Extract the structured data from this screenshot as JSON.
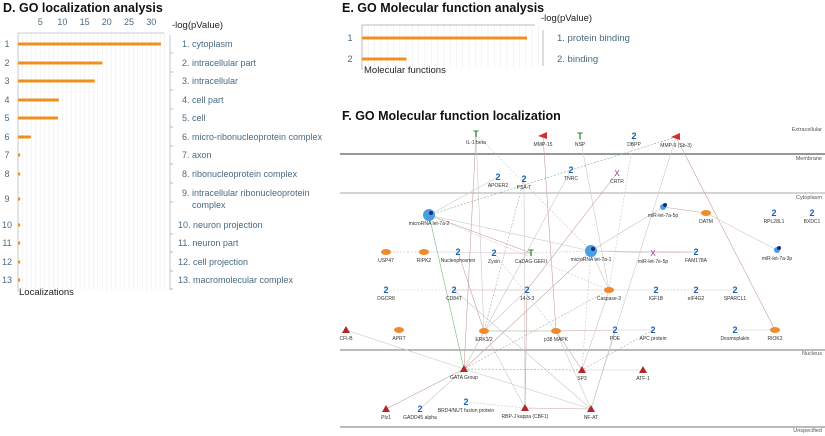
{
  "panel_d": {
    "title": "D. GO localization analysis",
    "x_axis_label": "-log(pValue)",
    "y_axis_label": "Localizations",
    "chart_data": {
      "type": "bar",
      "orientation": "horizontal",
      "xlabel": "-log(pValue)",
      "ylabel": "Localizations",
      "xticks": [
        5,
        10,
        15,
        20,
        25,
        30
      ],
      "xlim": [
        0,
        33
      ],
      "grid": true,
      "bar_color": "#f0901e",
      "categories": [
        "1",
        "2",
        "3",
        "4",
        "5",
        "6",
        "7",
        "8",
        "9",
        "10",
        "11",
        "12",
        "13"
      ],
      "values": [
        32.2,
        19.0,
        17.3,
        9.2,
        9.0,
        2.9,
        0.5,
        0.5,
        0.5,
        0.5,
        0.5,
        0.5,
        0.5
      ],
      "legend": [
        "1. cytoplasm",
        "2. intracellular part",
        "3. intracellular",
        "4. cell part",
        "5. cell",
        "6. micro-ribonucleoprotein complex",
        "7. axon",
        "8. ribonucleoprotein complex",
        "9. intracellular ribonucleoprotein complex",
        "10. neuron projection",
        "11. neuron part",
        "12. cell projection",
        "13. macromolecular complex"
      ]
    }
  },
  "panel_e": {
    "title": "E. GO Molecular function analysis",
    "x_axis_label": "-log(pValue)",
    "y_axis_label": "Molecular functions",
    "chart_data": {
      "type": "bar",
      "orientation": "horizontal",
      "xlabel": "-log(pValue)",
      "ylabel": "Molecular functions",
      "grid": true,
      "bar_color": "#f0901e",
      "categories": [
        "1",
        "2"
      ],
      "relative_values": [
        1.0,
        0.27
      ],
      "legend": [
        "1. protein binding",
        "2. binding"
      ]
    }
  },
  "panel_f": {
    "title": "F. GO Molecular function localization",
    "lanes": [
      "Extracellular",
      "Membrane",
      "Cytoplasm",
      "Nucleus",
      "Unspecified"
    ],
    "colors": {
      "transcription_factor": "#b0282a",
      "kinase": "#f08a2a",
      "generic": "#1a5fb4",
      "ligand": "#2a8a3a",
      "microrna": "#4a9de0",
      "receptor": "#d03030",
      "edge_red": "#c9a0a0",
      "edge_gray": "#c8c8c8",
      "edge_green": "#7ab87a"
    },
    "nodes": [
      {
        "id": "IL-1 beta",
        "type": "ligand"
      },
      {
        "id": "MMP-15",
        "type": "receptor"
      },
      {
        "id": "NSP",
        "type": "ligand"
      },
      {
        "id": "DBPP",
        "type": "generic"
      },
      {
        "id": "MMP-9 (Sb-3)",
        "type": "receptor"
      },
      {
        "id": "APOER2",
        "type": "generic"
      },
      {
        "id": "PSA-T",
        "type": "generic"
      },
      {
        "id": "TNRC",
        "type": "generic"
      },
      {
        "id": "CRTR",
        "type": "other"
      },
      {
        "id": "microRNA let-7a-2",
        "type": "microrna"
      },
      {
        "id": "miR-let-7a-5p",
        "type": "microrna"
      },
      {
        "id": "DATM",
        "type": "kinase"
      },
      {
        "id": "RPL28L1",
        "type": "generic"
      },
      {
        "id": "BXDC1",
        "type": "generic"
      },
      {
        "id": "USP47",
        "type": "kinase"
      },
      {
        "id": "RIPK2",
        "type": "kinase"
      },
      {
        "id": "Nucleophosmin",
        "type": "generic"
      },
      {
        "id": "Zyxin",
        "type": "generic"
      },
      {
        "id": "CaDAG-GEFII",
        "type": "ligand"
      },
      {
        "id": "microRNA let-7a-1",
        "type": "microrna"
      },
      {
        "id": "miR-let-7e-5p",
        "type": "other"
      },
      {
        "id": "FAM178A",
        "type": "generic"
      },
      {
        "id": "miR-let-7a-3p",
        "type": "microrna"
      },
      {
        "id": "DGCR8",
        "type": "generic"
      },
      {
        "id": "CD84T",
        "type": "generic"
      },
      {
        "id": "14-3-3",
        "type": "generic"
      },
      {
        "id": "Caspase-3",
        "type": "kinase"
      },
      {
        "id": "IGF1B",
        "type": "generic"
      },
      {
        "id": "eIF4G2",
        "type": "generic"
      },
      {
        "id": "SPARCL1",
        "type": "generic"
      },
      {
        "id": "CFI-B",
        "type": "transcription_factor"
      },
      {
        "id": "APRT",
        "type": "kinase"
      },
      {
        "id": "ERK1/2",
        "type": "kinase"
      },
      {
        "id": "p38 MAPK",
        "type": "kinase"
      },
      {
        "id": "PDE",
        "type": "generic"
      },
      {
        "id": "APC protein",
        "type": "generic"
      },
      {
        "id": "Desmoplakin",
        "type": "generic"
      },
      {
        "id": "RIOK2",
        "type": "kinase"
      },
      {
        "id": "GATA Group",
        "type": "transcription_factor"
      },
      {
        "id": "SP3",
        "type": "transcription_factor"
      },
      {
        "id": "ATF-1",
        "type": "transcription_factor"
      },
      {
        "id": "Plz1",
        "type": "transcription_factor"
      },
      {
        "id": "GADD45 alpha",
        "type": "generic"
      },
      {
        "id": "BRD4/NUT fusion protein",
        "type": "generic"
      },
      {
        "id": "RBP-J kappa (CBF1)",
        "type": "transcription_factor"
      },
      {
        "id": "NF-AT",
        "type": "transcription_factor"
      }
    ],
    "edges": [
      [
        "IL-1 beta",
        "GATA Group"
      ],
      [
        "IL-1 beta",
        "microRNA let-7a-1"
      ],
      [
        "IL-1 beta",
        "ERK1/2"
      ],
      [
        "MMP-15",
        "p38 MAPK"
      ],
      [
        "NSP",
        "Caspase-3"
      ],
      [
        "MMP-9 (Sb-3)",
        "microRNA let-7a-2"
      ],
      [
        "MMP-9 (Sb-3)",
        "RIOK2"
      ],
      [
        "MMP-9 (Sb-3)",
        "NF-AT"
      ],
      [
        "APOER2",
        "microRNA let-7a-2"
      ],
      [
        "PSA-T",
        "ERK1/2"
      ],
      [
        "PSA-T",
        "RBP-J kappa (CBF1)"
      ],
      [
        "TNRC",
        "GATA Group"
      ],
      [
        "CRTR",
        "14-3-3"
      ],
      [
        "DBPP",
        "Caspase-3"
      ],
      [
        "microRNA let-7a-2",
        "microRNA let-7a-1"
      ],
      [
        "microRNA let-7a-2",
        "CaDAG-GEFII"
      ],
      [
        "microRNA let-7a-2",
        "GATA Group"
      ],
      [
        "microRNA let-7a-2",
        "Caspase-3"
      ],
      [
        "miR-let-7a-5p",
        "DATM"
      ],
      [
        "miR-let-7a-5p",
        "microRNA let-7a-1"
      ],
      [
        "DATM",
        "miR-let-7a-3p"
      ],
      [
        "USP47",
        "RIPK2"
      ],
      [
        "RIPK2",
        "Nucleophosmin"
      ],
      [
        "Nucleophosmin",
        "Zyxin"
      ],
      [
        "Zyxin",
        "CaDAG-GEFII"
      ],
      [
        "CaDAG-GEFII",
        "microRNA let-7a-1"
      ],
      [
        "microRNA let-7a-1",
        "miR-let-7e-5p"
      ],
      [
        "miR-let-7e-5p",
        "FAM178A"
      ],
      [
        "microRNA let-7a-1",
        "FAM178A"
      ],
      [
        "DGCR8",
        "CD84T"
      ],
      [
        "CD84T",
        "14-3-3"
      ],
      [
        "14-3-3",
        "Caspase-3"
      ],
      [
        "Caspase-3",
        "IGF1B"
      ],
      [
        "IGF1B",
        "eIF4G2"
      ],
      [
        "eIF4G2",
        "SPARCL1"
      ],
      [
        "microRNA let-7a-1",
        "Caspase-3"
      ],
      [
        "microRNA let-7a-1",
        "GATA Group"
      ],
      [
        "microRNA let-7a-1",
        "SP3"
      ],
      [
        "ERK1/2",
        "p38 MAPK"
      ],
      [
        "p38 MAPK",
        "PDE"
      ],
      [
        "PDE",
        "APC protein"
      ],
      [
        "ERK1/2",
        "GATA Group"
      ],
      [
        "p38 MAPK",
        "SP3"
      ],
      [
        "p38 MAPK",
        "NF-AT"
      ],
      [
        "ERK1/2",
        "RBP-J kappa (CBF1)"
      ],
      [
        "Caspase-3",
        "GATA Group"
      ],
      [
        "Caspase-3",
        "SP3"
      ],
      [
        "14-3-3",
        "ERK1/2"
      ],
      [
        "14-3-3",
        "RBP-J kappa (CBF1)"
      ],
      [
        "GATA Group",
        "SP3"
      ],
      [
        "SP3",
        "ATF-1"
      ],
      [
        "GATA Group",
        "Plz1"
      ],
      [
        "GATA Group",
        "GADD45 alpha"
      ],
      [
        "BRD4/NUT fusion protein",
        "RBP-J kappa (CBF1)"
      ],
      [
        "RBP-J kappa (CBF1)",
        "NF-AT"
      ],
      [
        "GATA Group",
        "NF-AT"
      ],
      [
        "CFI-B",
        "GATA Group"
      ],
      [
        "APC protein",
        "SP3"
      ],
      [
        "PDE",
        "NF-AT"
      ],
      [
        "Desmoplakin",
        "RIOK2"
      ],
      [
        "Nucleophosmin",
        "ERK1/2"
      ],
      [
        "Zyxin",
        "p38 MAPK"
      ],
      [
        "CD84T",
        "NF-AT"
      ]
    ]
  }
}
